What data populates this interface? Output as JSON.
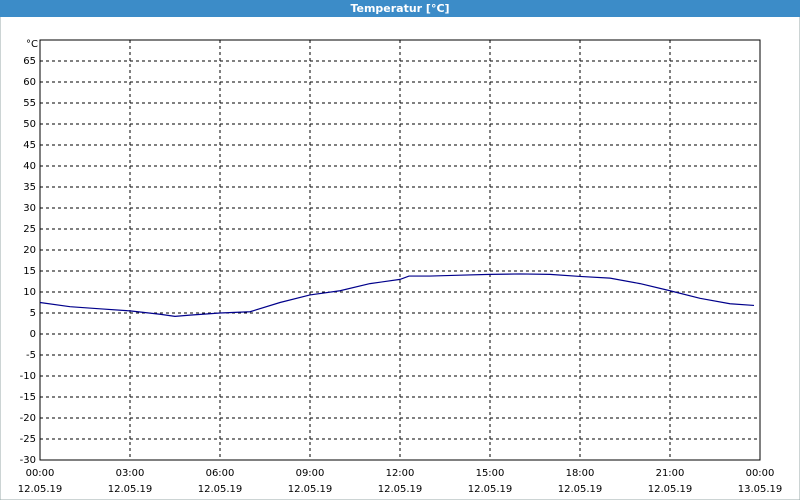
{
  "chart_data": {
    "type": "line",
    "title": "Temperatur [°C]",
    "y_unit": "°C",
    "x": [
      0,
      1,
      2,
      3,
      4,
      4.5,
      5,
      6,
      7,
      8,
      9,
      10,
      11,
      12,
      12.3,
      13,
      14,
      15,
      16,
      17,
      18,
      19,
      20,
      21,
      22,
      23,
      23.8
    ],
    "series": [
      {
        "name": "Temperatur",
        "color": "#00008b",
        "values": [
          7.5,
          6.5,
          6.0,
          5.5,
          4.7,
          4.2,
          4.5,
          5.0,
          5.3,
          7.5,
          9.3,
          10.3,
          12.0,
          13.0,
          13.8,
          13.8,
          14.0,
          14.2,
          14.3,
          14.2,
          13.7,
          13.3,
          12.0,
          10.3,
          8.5,
          7.2,
          6.8
        ]
      }
    ],
    "xlim": [
      0,
      24
    ],
    "xticks": [
      {
        "value": 0,
        "label": "00:00",
        "date": "12.05.19"
      },
      {
        "value": 3,
        "label": "03:00",
        "date": "12.05.19"
      },
      {
        "value": 6,
        "label": "06:00",
        "date": "12.05.19"
      },
      {
        "value": 9,
        "label": "09:00",
        "date": "12.05.19"
      },
      {
        "value": 12,
        "label": "12:00",
        "date": "12.05.19"
      },
      {
        "value": 15,
        "label": "15:00",
        "date": "12.05.19"
      },
      {
        "value": 18,
        "label": "18:00",
        "date": "12.05.19"
      },
      {
        "value": 21,
        "label": "21:00",
        "date": "12.05.19"
      },
      {
        "value": 24,
        "label": "00:00",
        "date": "13.05.19"
      }
    ],
    "ylim": [
      -30,
      70
    ],
    "yticks": [
      -30,
      -25,
      -20,
      -15,
      -10,
      -5,
      0,
      5,
      10,
      15,
      20,
      25,
      30,
      35,
      40,
      45,
      50,
      55,
      60,
      65
    ],
    "grid": true
  }
}
